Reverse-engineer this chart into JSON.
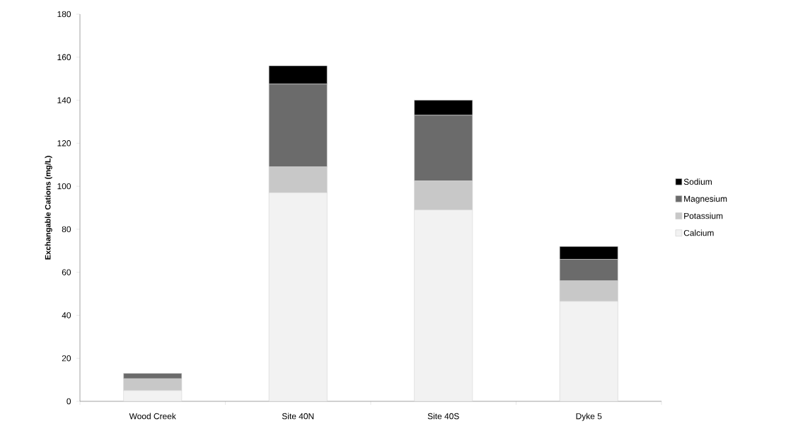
{
  "chart_data": {
    "type": "bar",
    "stacked": true,
    "ylabel": "Exchangable Cations (mg/L)",
    "categories": [
      "Wood Creek",
      "Site 40N",
      "Site 40S",
      "Dyke 5"
    ],
    "series": [
      {
        "name": "Calcium",
        "color": "#f2f2f2",
        "values": [
          5,
          97,
          89,
          46.5
        ]
      },
      {
        "name": "Potassium",
        "color": "#c8c8c8",
        "values": [
          5.5,
          12,
          13.5,
          9.5
        ]
      },
      {
        "name": "Magnesium",
        "color": "#6b6b6b",
        "values": [
          2.5,
          38.5,
          30.5,
          10
        ]
      },
      {
        "name": "Sodium",
        "color": "#000000",
        "values": [
          0,
          8.5,
          7,
          6
        ]
      }
    ],
    "ylim": [
      0,
      180
    ],
    "yticks": [
      0,
      20,
      40,
      60,
      80,
      100,
      120,
      140,
      160,
      180
    ],
    "grid": false,
    "legend": "right"
  }
}
